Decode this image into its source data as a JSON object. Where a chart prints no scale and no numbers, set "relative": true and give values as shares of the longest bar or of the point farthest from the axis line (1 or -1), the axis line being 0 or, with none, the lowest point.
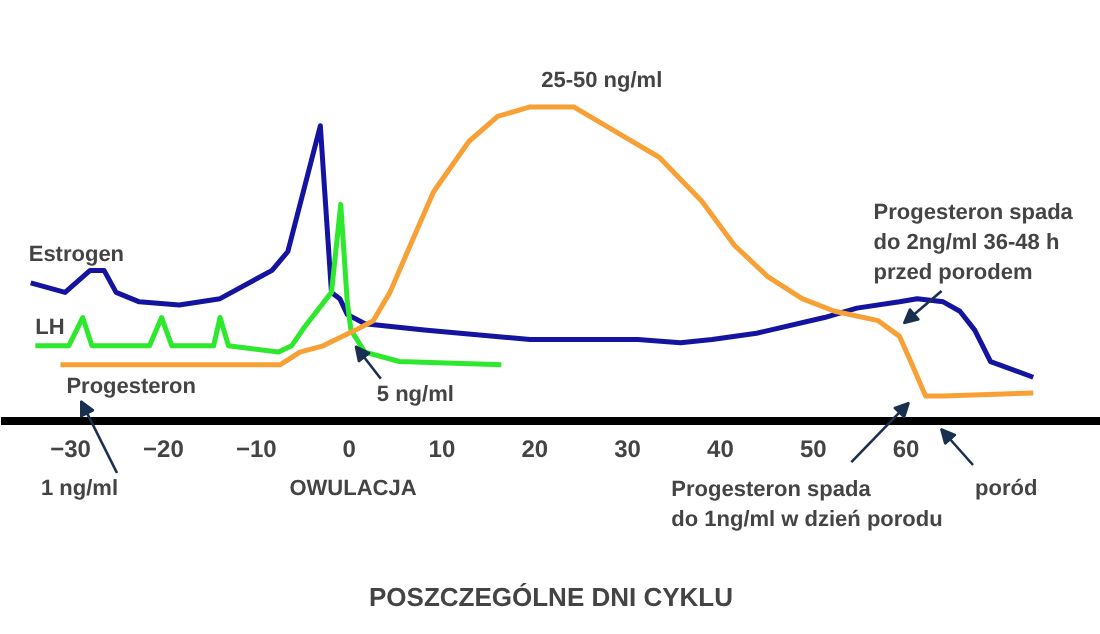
{
  "chart_data": {
    "type": "line",
    "relative": true,
    "xlabel": "POSZCZEGÓLNE DNI CYKLU",
    "xlim": [
      -37.5,
      81
    ],
    "xticks": [
      -30,
      -20,
      -10,
      0,
      10,
      20,
      30,
      40,
      50,
      60
    ],
    "grid": false,
    "legend": false,
    "marker": "none",
    "line_style": "solid",
    "series": [
      {
        "name": "Estrogen",
        "color": "#1414a0",
        "x": [
          -34.3,
          -30.6,
          -27.9,
          -26.4,
          -25.1,
          -22.6,
          -18.3,
          -13.9,
          -8.3,
          -6.6,
          -3.1,
          -1.9,
          -1.0,
          -0.2,
          1.7,
          8.1,
          19.5,
          31.1,
          35.7,
          39.1,
          43.9,
          51.2,
          54.7,
          59.3,
          61.2,
          64.0,
          65.8,
          67.4,
          69.1,
          73.7
        ],
        "values": [
          0.44,
          0.41,
          0.48,
          0.48,
          0.41,
          0.38,
          0.37,
          0.39,
          0.48,
          0.54,
          0.94,
          0.41,
          0.39,
          0.34,
          0.31,
          0.29,
          0.26,
          0.26,
          0.25,
          0.26,
          0.28,
          0.33,
          0.36,
          0.38,
          0.39,
          0.38,
          0.35,
          0.29,
          0.19,
          0.14
        ]
      },
      {
        "name": "LH",
        "color": "#2ee82e",
        "x": [
          -33.8,
          -30.2,
          -28.7,
          -27.7,
          -21.5,
          -20.2,
          -19.1,
          -14.6,
          -13.9,
          -13.0,
          -7.6,
          -6.2,
          -4.8,
          -1.9,
          -0.9,
          -0.2,
          0.2,
          1.7,
          5.4,
          16.4
        ],
        "values": [
          0.24,
          0.24,
          0.33,
          0.24,
          0.24,
          0.33,
          0.24,
          0.24,
          0.33,
          0.24,
          0.22,
          0.24,
          0.3,
          0.41,
          0.69,
          0.38,
          0.29,
          0.22,
          0.19,
          0.18
        ]
      },
      {
        "name": "Progesteron",
        "color": "#f7a035",
        "x": [
          -31.1,
          -7.4,
          -5.3,
          -2.8,
          0.7,
          2.6,
          4.4,
          6.3,
          9.1,
          12.9,
          16.0,
          19.5,
          24.2,
          28.8,
          33.4,
          38.0,
          41.5,
          45.1,
          48.8,
          52.3,
          57.0,
          59.3,
          60.5,
          62.1,
          64.0,
          73.7
        ],
        "values": [
          0.18,
          0.18,
          0.22,
          0.24,
          0.29,
          0.32,
          0.41,
          0.54,
          0.73,
          0.89,
          0.97,
          1.0,
          1.0,
          0.92,
          0.84,
          0.7,
          0.56,
          0.46,
          0.39,
          0.35,
          0.32,
          0.27,
          0.19,
          0.08,
          0.08,
          0.09
        ]
      }
    ],
    "annotations": [
      {
        "text": "25-50 ng/ml",
        "x": 24.2,
        "y": 1.0
      },
      {
        "text": "5 ng/ml",
        "x": 0.4,
        "y": 0.25
      },
      "1 ng/ml",
      {
        "text": "Progesteron spada\ndo 2ng/ml 36-48 h\nprzed porodem",
        "x": 59.3,
        "y": 0.3
      },
      {
        "text": "Progesteron spada\ndo 1ng/ml w dzień porodu",
        "x": 61,
        "y": 0.08
      },
      "poród",
      "OWULACJA"
    ]
  }
}
